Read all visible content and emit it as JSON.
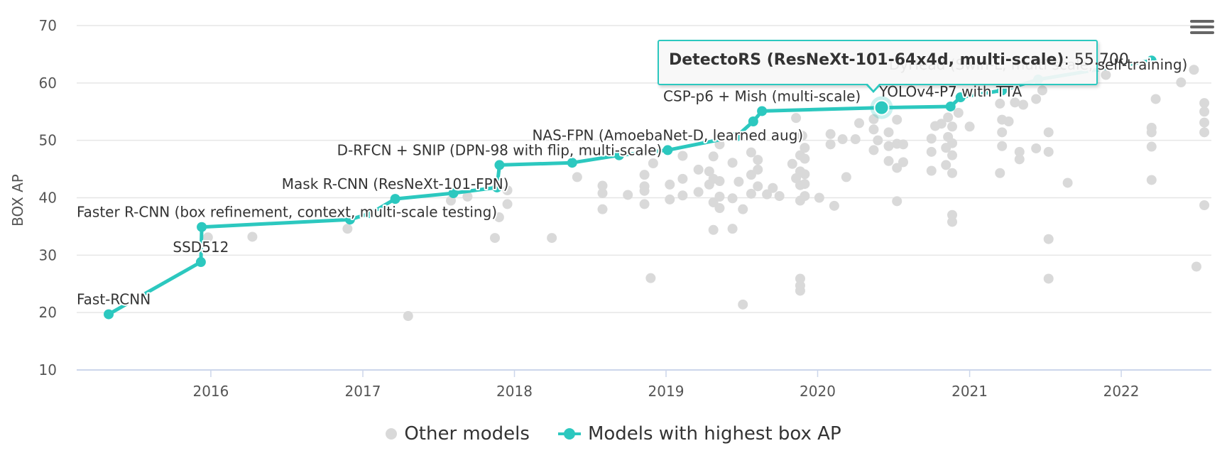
{
  "chart_data": {
    "type": "scatter",
    "ylabel": "BOX AP",
    "ylim": [
      10,
      70
    ],
    "yticks": [
      10,
      20,
      30,
      40,
      50,
      60,
      70
    ],
    "xlim": [
      "2015-02-12",
      "2022-08-06"
    ],
    "xticks": [
      "2016",
      "2017",
      "2018",
      "2019",
      "2020",
      "2021",
      "2022"
    ],
    "xtick_dates": [
      "2016-01-01",
      "2017-01-01",
      "2018-01-01",
      "2019-01-01",
      "2020-01-01",
      "2021-01-01",
      "2022-01-01"
    ],
    "grid": true,
    "legend_position": "bottom-center",
    "colors": {
      "best": "#2cc8bf",
      "other": "#d9d9d9",
      "grid": "#e6e6e6",
      "axis": "#ccd6eb"
    },
    "series": [
      {
        "name": "Models with highest box AP",
        "points": [
          {
            "date": "2015-04-30",
            "y": 19.7,
            "label": "Fast-RCNN"
          },
          {
            "date": "2015-12-08",
            "y": 28.8,
            "label": "SSD512"
          },
          {
            "date": "2015-12-10",
            "y": 34.9,
            "label": "Faster R-CNN (box refinement, context, multi-scale testing)"
          },
          {
            "date": "2016-12-01",
            "y": 36.2
          },
          {
            "date": "2017-01-20",
            "y": 37.3
          },
          {
            "date": "2017-03-20",
            "y": 39.8,
            "label": "Mask R-CNN (ResNeXt-101-FPN)"
          },
          {
            "date": "2017-08-07",
            "y": 40.8
          },
          {
            "date": "2017-11-20",
            "y": 41.8
          },
          {
            "date": "2017-11-26",
            "y": 45.7,
            "label": "D-RFCN + SNIP (DPN-98 with flip, multi-scale)"
          },
          {
            "date": "2018-05-20",
            "y": 46.1
          },
          {
            "date": "2018-09-10",
            "y": 47.4
          },
          {
            "date": "2019-01-05",
            "y": 48.3,
            "label": "NAS-FPN (AmoebaNet-D, learned aug)"
          },
          {
            "date": "2019-06-20",
            "y": 50.7
          },
          {
            "date": "2019-07-30",
            "y": 53.3
          },
          {
            "date": "2019-08-20",
            "y": 55.1,
            "label": "CSP-p6 + Mish (multi-scale)"
          },
          {
            "date": "2020-06-03",
            "y": 55.7
          },
          {
            "date": "2020-11-16",
            "y": 55.9,
            "label": "YOLOv4-P7 with TTA"
          },
          {
            "date": "2020-12-10",
            "y": 57.5
          },
          {
            "date": "2021-03-20",
            "y": 58.7
          },
          {
            "date": "2021-06-15",
            "y": 60.6,
            "label": "DyHead (Swin-L, multi scale, self-training)"
          },
          {
            "date": "2022-03-15",
            "y": 63.9
          }
        ]
      },
      {
        "name": "Other models",
        "points": [
          {
            "date": "2015-12-25",
            "y": 33.1
          },
          {
            "date": "2016-04-10",
            "y": 33.2
          },
          {
            "date": "2016-11-25",
            "y": 34.6
          },
          {
            "date": "2017-04-20",
            "y": 19.4
          },
          {
            "date": "2017-08-01",
            "y": 39.5
          },
          {
            "date": "2017-09-10",
            "y": 40.2
          },
          {
            "date": "2017-11-15",
            "y": 33.0
          },
          {
            "date": "2017-11-25",
            "y": 36.6
          },
          {
            "date": "2017-12-15",
            "y": 38.9
          },
          {
            "date": "2017-12-15",
            "y": 41.3
          },
          {
            "date": "2018-04-01",
            "y": 33.0
          },
          {
            "date": "2018-06-01",
            "y": 43.6
          },
          {
            "date": "2018-08-01",
            "y": 38.0
          },
          {
            "date": "2018-08-01",
            "y": 40.8
          },
          {
            "date": "2018-08-01",
            "y": 42.1
          },
          {
            "date": "2018-10-01",
            "y": 40.5
          },
          {
            "date": "2018-11-10",
            "y": 38.9
          },
          {
            "date": "2018-11-10",
            "y": 41.2
          },
          {
            "date": "2018-11-10",
            "y": 42.0
          },
          {
            "date": "2018-11-10",
            "y": 44.0
          },
          {
            "date": "2018-11-25",
            "y": 26.0
          },
          {
            "date": "2018-12-01",
            "y": 46.0
          },
          {
            "date": "2019-01-10",
            "y": 39.7
          },
          {
            "date": "2019-01-10",
            "y": 42.3
          },
          {
            "date": "2019-02-10",
            "y": 40.4
          },
          {
            "date": "2019-02-10",
            "y": 43.3
          },
          {
            "date": "2019-02-10",
            "y": 47.3
          },
          {
            "date": "2019-03-20",
            "y": 41.0
          },
          {
            "date": "2019-03-20",
            "y": 44.9
          },
          {
            "date": "2019-04-15",
            "y": 42.3
          },
          {
            "date": "2019-04-15",
            "y": 44.6
          },
          {
            "date": "2019-04-25",
            "y": 34.4
          },
          {
            "date": "2019-04-25",
            "y": 39.2
          },
          {
            "date": "2019-04-25",
            "y": 43.3
          },
          {
            "date": "2019-04-25",
            "y": 47.2
          },
          {
            "date": "2019-05-10",
            "y": 38.2
          },
          {
            "date": "2019-05-10",
            "y": 40.2
          },
          {
            "date": "2019-05-10",
            "y": 42.9
          },
          {
            "date": "2019-05-10",
            "y": 49.3
          },
          {
            "date": "2019-06-10",
            "y": 34.6
          },
          {
            "date": "2019-06-10",
            "y": 39.9
          },
          {
            "date": "2019-06-10",
            "y": 46.1
          },
          {
            "date": "2019-06-25",
            "y": 42.8
          },
          {
            "date": "2019-07-05",
            "y": 21.4
          },
          {
            "date": "2019-07-05",
            "y": 38.0
          },
          {
            "date": "2019-07-25",
            "y": 40.7
          },
          {
            "date": "2019-07-25",
            "y": 44.0
          },
          {
            "date": "2019-07-25",
            "y": 47.9
          },
          {
            "date": "2019-08-10",
            "y": 42.0
          },
          {
            "date": "2019-08-10",
            "y": 44.9
          },
          {
            "date": "2019-08-10",
            "y": 46.6
          },
          {
            "date": "2019-09-01",
            "y": 40.6
          },
          {
            "date": "2019-09-15",
            "y": 41.7
          },
          {
            "date": "2019-10-01",
            "y": 40.3
          },
          {
            "date": "2019-11-01",
            "y": 45.9
          },
          {
            "date": "2019-11-10",
            "y": 43.4
          },
          {
            "date": "2019-11-10",
            "y": 53.9
          },
          {
            "date": "2019-11-20",
            "y": 23.8
          },
          {
            "date": "2019-11-20",
            "y": 24.7
          },
          {
            "date": "2019-11-20",
            "y": 25.9
          },
          {
            "date": "2019-11-20",
            "y": 39.5
          },
          {
            "date": "2019-11-20",
            "y": 42.2
          },
          {
            "date": "2019-11-20",
            "y": 44.6
          },
          {
            "date": "2019-11-20",
            "y": 47.4
          },
          {
            "date": "2019-11-25",
            "y": 50.8
          },
          {
            "date": "2019-12-01",
            "y": 40.3
          },
          {
            "date": "2019-12-01",
            "y": 42.4
          },
          {
            "date": "2019-12-01",
            "y": 44.1
          },
          {
            "date": "2019-12-01",
            "y": 46.8
          },
          {
            "date": "2019-12-01",
            "y": 48.7
          },
          {
            "date": "2020-01-05",
            "y": 40.0
          },
          {
            "date": "2020-02-01",
            "y": 49.3
          },
          {
            "date": "2020-02-01",
            "y": 51.1
          },
          {
            "date": "2020-02-10",
            "y": 38.6
          },
          {
            "date": "2020-03-01",
            "y": 50.2
          },
          {
            "date": "2020-03-10",
            "y": 43.6
          },
          {
            "date": "2020-04-01",
            "y": 50.2
          },
          {
            "date": "2020-04-10",
            "y": 53.0
          },
          {
            "date": "2020-05-15",
            "y": 48.3
          },
          {
            "date": "2020-05-15",
            "y": 51.9
          },
          {
            "date": "2020-05-15",
            "y": 53.7
          },
          {
            "date": "2020-05-25",
            "y": 50.0
          },
          {
            "date": "2020-06-20",
            "y": 46.4
          },
          {
            "date": "2020-06-20",
            "y": 49.0
          },
          {
            "date": "2020-06-20",
            "y": 51.4
          },
          {
            "date": "2020-07-10",
            "y": 39.4
          },
          {
            "date": "2020-07-10",
            "y": 45.2
          },
          {
            "date": "2020-07-10",
            "y": 49.4
          },
          {
            "date": "2020-07-10",
            "y": 53.6
          },
          {
            "date": "2020-07-25",
            "y": 46.2
          },
          {
            "date": "2020-07-25",
            "y": 49.3
          },
          {
            "date": "2020-10-01",
            "y": 44.7
          },
          {
            "date": "2020-10-01",
            "y": 48.0
          },
          {
            "date": "2020-10-01",
            "y": 50.3
          },
          {
            "date": "2020-10-10",
            "y": 52.5
          },
          {
            "date": "2020-10-25",
            "y": 52.9
          },
          {
            "date": "2020-11-05",
            "y": 45.7
          },
          {
            "date": "2020-11-05",
            "y": 48.7
          },
          {
            "date": "2020-11-10",
            "y": 50.6
          },
          {
            "date": "2020-11-10",
            "y": 54.0
          },
          {
            "date": "2020-11-20",
            "y": 35.8
          },
          {
            "date": "2020-11-20",
            "y": 37.0
          },
          {
            "date": "2020-11-20",
            "y": 44.3
          },
          {
            "date": "2020-11-20",
            "y": 47.4
          },
          {
            "date": "2020-11-20",
            "y": 49.5
          },
          {
            "date": "2020-11-20",
            "y": 52.4
          },
          {
            "date": "2020-12-05",
            "y": 54.8
          },
          {
            "date": "2021-01-01",
            "y": 52.4
          },
          {
            "date": "2021-03-15",
            "y": 44.3
          },
          {
            "date": "2021-03-15",
            "y": 56.4
          },
          {
            "date": "2021-03-20",
            "y": 49.0
          },
          {
            "date": "2021-03-20",
            "y": 51.4
          },
          {
            "date": "2021-03-20",
            "y": 53.6
          },
          {
            "date": "2021-04-05",
            "y": 53.3
          },
          {
            "date": "2021-04-20",
            "y": 56.6
          },
          {
            "date": "2021-05-01",
            "y": 46.7
          },
          {
            "date": "2021-05-01",
            "y": 48.0
          },
          {
            "date": "2021-05-10",
            "y": 56.2
          },
          {
            "date": "2021-06-10",
            "y": 48.6
          },
          {
            "date": "2021-06-10",
            "y": 57.2
          },
          {
            "date": "2021-06-25",
            "y": 58.7
          },
          {
            "date": "2021-07-10",
            "y": 25.9
          },
          {
            "date": "2021-07-10",
            "y": 32.8
          },
          {
            "date": "2021-07-10",
            "y": 48.0
          },
          {
            "date": "2021-07-10",
            "y": 51.4
          },
          {
            "date": "2021-08-25",
            "y": 42.6
          },
          {
            "date": "2021-11-25",
            "y": 61.4
          },
          {
            "date": "2022-03-15",
            "y": 43.1
          },
          {
            "date": "2022-03-15",
            "y": 48.9
          },
          {
            "date": "2022-03-15",
            "y": 51.4
          },
          {
            "date": "2022-03-15",
            "y": 52.2
          },
          {
            "date": "2022-03-25",
            "y": 57.2
          },
          {
            "date": "2022-05-25",
            "y": 60.1
          },
          {
            "date": "2022-06-25",
            "y": 62.3
          },
          {
            "date": "2022-07-01",
            "y": 28.0
          },
          {
            "date": "2022-07-20",
            "y": 38.7
          },
          {
            "date": "2022-07-20",
            "y": 51.4
          },
          {
            "date": "2022-07-20",
            "y": 53.1
          },
          {
            "date": "2022-07-20",
            "y": 55.0
          },
          {
            "date": "2022-07-20",
            "y": 56.5
          }
        ]
      }
    ],
    "highlight": {
      "date": "2020-06-03",
      "y": 55.7
    }
  },
  "tooltip": {
    "name": "DetectoRS (ResNeXt-101-64x4d, multi-scale)",
    "separator": ": ",
    "value": "55.700"
  },
  "legend": {
    "other_label": "Other models",
    "best_label": "Models with highest box AP"
  },
  "menu": {
    "icon": "hamburger-menu-icon"
  }
}
